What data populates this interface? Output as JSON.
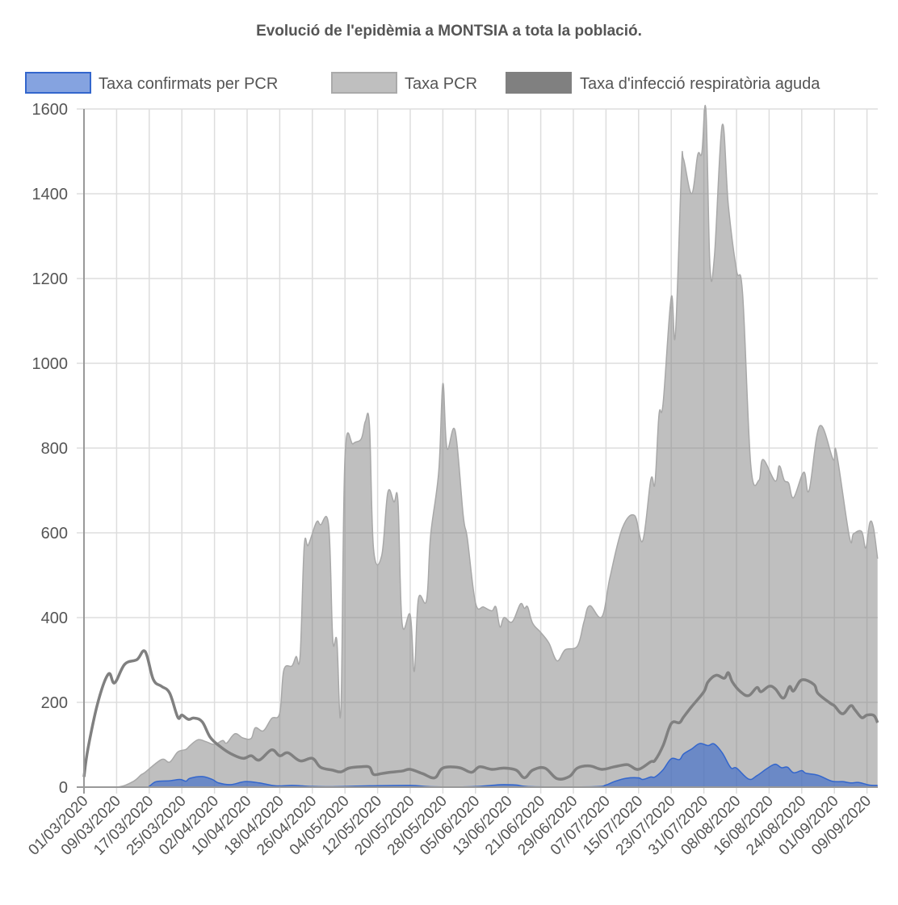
{
  "chart_data": {
    "type": "area",
    "title": "Evolució de l'epidèmia a MONTSIA a tota la població.",
    "x_unit": "days since 01/03/2020",
    "x_range": [
      0,
      194
    ],
    "ylim": [
      0,
      1600
    ],
    "yticks": [
      0,
      200,
      400,
      600,
      800,
      1000,
      1200,
      1400,
      1600
    ],
    "grid": true,
    "legend_position": "top",
    "xtick_step_days": 8,
    "xtick_labels": [
      "01/03/2020",
      "09/03/2020",
      "17/03/2020",
      "25/03/2020",
      "02/04/2020",
      "10/04/2020",
      "18/04/2020",
      "26/04/2020",
      "04/05/2020",
      "12/05/2020",
      "20/05/2020",
      "28/05/2020",
      "05/06/2020",
      "13/06/2020",
      "21/06/2020",
      "29/06/2020",
      "07/07/2020",
      "15/07/2020",
      "23/07/2020",
      "31/07/2020",
      "08/08/2020",
      "16/08/2020",
      "24/08/2020",
      "01/09/2020",
      "09/09/2020"
    ],
    "series": [
      {
        "name": "Taxa PCR",
        "style": "area",
        "fill": "rgba(128,128,128,0.5)",
        "stroke": "#a8a8a8",
        "points": [
          [
            0,
            0
          ],
          [
            8,
            0
          ],
          [
            12,
            13
          ],
          [
            14,
            29
          ],
          [
            15,
            35
          ],
          [
            19,
            65
          ],
          [
            21,
            59
          ],
          [
            23,
            83
          ],
          [
            25,
            89
          ],
          [
            26,
            98
          ],
          [
            28,
            112
          ],
          [
            30,
            107
          ],
          [
            32,
            101
          ],
          [
            34,
            110
          ],
          [
            35,
            104
          ],
          [
            37,
            126
          ],
          [
            39,
            116
          ],
          [
            41,
            115
          ],
          [
            42,
            140
          ],
          [
            44,
            133
          ],
          [
            46,
            162
          ],
          [
            48,
            175
          ],
          [
            49,
            276
          ],
          [
            51,
            286
          ],
          [
            52,
            308
          ],
          [
            53,
            310
          ],
          [
            54,
            568
          ],
          [
            55,
            571
          ],
          [
            57,
            625
          ],
          [
            58,
            619
          ],
          [
            60,
            617
          ],
          [
            61,
            349
          ],
          [
            62,
            346
          ],
          [
            63,
            180
          ],
          [
            64,
            778
          ],
          [
            66,
            810
          ],
          [
            68,
            822
          ],
          [
            69,
            863
          ],
          [
            70,
            854
          ],
          [
            71,
            562
          ],
          [
            73,
            546
          ],
          [
            74.5,
            695
          ],
          [
            76,
            673
          ],
          [
            77,
            673
          ],
          [
            78,
            387
          ],
          [
            80,
            406
          ],
          [
            81,
            273
          ],
          [
            82,
            444
          ],
          [
            84,
            441
          ],
          [
            85,
            594
          ],
          [
            87,
            746
          ],
          [
            88,
            952
          ],
          [
            89,
            800
          ],
          [
            91,
            841
          ],
          [
            93,
            640
          ],
          [
            94,
            587
          ],
          [
            96,
            435
          ],
          [
            98,
            425
          ],
          [
            100,
            416
          ],
          [
            101,
            425
          ],
          [
            102,
            378
          ],
          [
            103,
            400
          ],
          [
            105,
            390
          ],
          [
            107,
            432
          ],
          [
            108,
            422
          ],
          [
            108.8,
            425
          ],
          [
            110,
            387
          ],
          [
            112,
            365
          ],
          [
            114,
            340
          ],
          [
            116,
            298
          ],
          [
            118,
            324
          ],
          [
            121,
            333
          ],
          [
            122.6,
            390
          ],
          [
            124,
            428
          ],
          [
            127,
            402
          ],
          [
            129,
            496
          ],
          [
            132,
            611
          ],
          [
            135,
            641
          ],
          [
            137,
            581
          ],
          [
            139,
            726
          ],
          [
            140,
            717
          ],
          [
            141,
            879
          ],
          [
            142,
            905
          ],
          [
            144,
            1156
          ],
          [
            145,
            1066
          ],
          [
            146.5,
            1454
          ],
          [
            147,
            1482
          ],
          [
            149,
            1400
          ],
          [
            150.5,
            1492
          ],
          [
            151.5,
            1496
          ],
          [
            152.5,
            1598
          ],
          [
            153.5,
            1228
          ],
          [
            154.6,
            1254
          ],
          [
            156.5,
            1562
          ],
          [
            158,
            1373
          ],
          [
            160,
            1220
          ],
          [
            161.5,
            1164
          ],
          [
            163.5,
            760
          ],
          [
            165.5,
            724
          ],
          [
            166.5,
            773
          ],
          [
            169.5,
            722
          ],
          [
            170.5,
            758
          ],
          [
            171.7,
            724
          ],
          [
            172.8,
            717
          ],
          [
            174,
            683
          ],
          [
            176.5,
            743
          ],
          [
            177.8,
            700
          ],
          [
            180.4,
            852
          ],
          [
            183.7,
            773
          ],
          [
            184.5,
            790
          ],
          [
            187.7,
            590
          ],
          [
            188.7,
            598
          ],
          [
            190.7,
            603
          ],
          [
            191.7,
            564
          ],
          [
            192.7,
            624
          ],
          [
            193.6,
            611
          ],
          [
            194.6,
            539
          ]
        ]
      },
      {
        "name": "Taxa confirmats per PCR",
        "style": "area",
        "fill": "rgba(51,102,204,0.6)",
        "stroke": "#3366cc",
        "points": [
          [
            0,
            0
          ],
          [
            15,
            0
          ],
          [
            16,
            2
          ],
          [
            17.7,
            13
          ],
          [
            21,
            15
          ],
          [
            23.6,
            18
          ],
          [
            25,
            14
          ],
          [
            26,
            21
          ],
          [
            29,
            25
          ],
          [
            31.5,
            18
          ],
          [
            33,
            10
          ],
          [
            36,
            6
          ],
          [
            39.5,
            13
          ],
          [
            43,
            10
          ],
          [
            47,
            3
          ],
          [
            51,
            4
          ],
          [
            55,
            2
          ],
          [
            60,
            1
          ],
          [
            70,
            3
          ],
          [
            80,
            4
          ],
          [
            85,
            1
          ],
          [
            95,
            1
          ],
          [
            101,
            5
          ],
          [
            103,
            6
          ],
          [
            106,
            5
          ],
          [
            110,
            1
          ],
          [
            125,
            1
          ],
          [
            128,
            5
          ],
          [
            130,
            13
          ],
          [
            133,
            21
          ],
          [
            136,
            22
          ],
          [
            137,
            18
          ],
          [
            139,
            24
          ],
          [
            140,
            24
          ],
          [
            142,
            41
          ],
          [
            144,
            67
          ],
          [
            146,
            65
          ],
          [
            147,
            78
          ],
          [
            149,
            90
          ],
          [
            151,
            103
          ],
          [
            153,
            98
          ],
          [
            154.5,
            102
          ],
          [
            156.5,
            81
          ],
          [
            158.6,
            46
          ],
          [
            160,
            45
          ],
          [
            163,
            19
          ],
          [
            165,
            27
          ],
          [
            167.5,
            44
          ],
          [
            169.5,
            54
          ],
          [
            171,
            46
          ],
          [
            172.5,
            47
          ],
          [
            174,
            34
          ],
          [
            176,
            39
          ],
          [
            177,
            33
          ],
          [
            180,
            28
          ],
          [
            183.4,
            14
          ],
          [
            186,
            13
          ],
          [
            188,
            10
          ],
          [
            190,
            11
          ],
          [
            192.5,
            5
          ],
          [
            194.6,
            4
          ]
        ]
      },
      {
        "name": "Taxa d'infecció respiratòria aguda",
        "style": "line",
        "stroke": "#808080",
        "points": [
          [
            0,
            24
          ],
          [
            1,
            92
          ],
          [
            3.5,
            203
          ],
          [
            6,
            267
          ],
          [
            7.5,
            246
          ],
          [
            10,
            290
          ],
          [
            13,
            301
          ],
          [
            15,
            320
          ],
          [
            17,
            254
          ],
          [
            19,
            238
          ],
          [
            21,
            222
          ],
          [
            23,
            165
          ],
          [
            24,
            170
          ],
          [
            25.6,
            160
          ],
          [
            27,
            163
          ],
          [
            29,
            154
          ],
          [
            31,
            117
          ],
          [
            33.5,
            95
          ],
          [
            36,
            79
          ],
          [
            39,
            68
          ],
          [
            41,
            74
          ],
          [
            43,
            64
          ],
          [
            46,
            88
          ],
          [
            48,
            74
          ],
          [
            50,
            81
          ],
          [
            53,
            62
          ],
          [
            56,
            68
          ],
          [
            58,
            47
          ],
          [
            61,
            40
          ],
          [
            63,
            36
          ],
          [
            65,
            45
          ],
          [
            68,
            48
          ],
          [
            70,
            47
          ],
          [
            71,
            30
          ],
          [
            73,
            32
          ],
          [
            75,
            35
          ],
          [
            78,
            38
          ],
          [
            80,
            42
          ],
          [
            83,
            32
          ],
          [
            86,
            22
          ],
          [
            88,
            45
          ],
          [
            92,
            46
          ],
          [
            95,
            35
          ],
          [
            97,
            48
          ],
          [
            100,
            42
          ],
          [
            103,
            45
          ],
          [
            106,
            40
          ],
          [
            108,
            22
          ],
          [
            110,
            40
          ],
          [
            113,
            45
          ],
          [
            116,
            20
          ],
          [
            119,
            25
          ],
          [
            121,
            45
          ],
          [
            124,
            50
          ],
          [
            127,
            42
          ],
          [
            130,
            48
          ],
          [
            133,
            53
          ],
          [
            134,
            50
          ],
          [
            136,
            42
          ],
          [
            139,
            60
          ],
          [
            140,
            63
          ],
          [
            142,
            98
          ],
          [
            144,
            150
          ],
          [
            146,
            152
          ],
          [
            147,
            165
          ],
          [
            149,
            190
          ],
          [
            152,
            225
          ],
          [
            153,
            248
          ],
          [
            155,
            264
          ],
          [
            157,
            257
          ],
          [
            158,
            270
          ],
          [
            159,
            248
          ],
          [
            161,
            225
          ],
          [
            163,
            216
          ],
          [
            165,
            235
          ],
          [
            166,
            225
          ],
          [
            168,
            238
          ],
          [
            169.5,
            232
          ],
          [
            171.5,
            210
          ],
          [
            173,
            237
          ],
          [
            174,
            227
          ],
          [
            176,
            253
          ],
          [
            179,
            242
          ],
          [
            180,
            221
          ],
          [
            183,
            198
          ],
          [
            184,
            192
          ],
          [
            186,
            173
          ],
          [
            188,
            192
          ],
          [
            189,
            183
          ],
          [
            190.7,
            164
          ],
          [
            192,
            170
          ],
          [
            193.7,
            169
          ],
          [
            194.6,
            152
          ]
        ]
      }
    ]
  }
}
